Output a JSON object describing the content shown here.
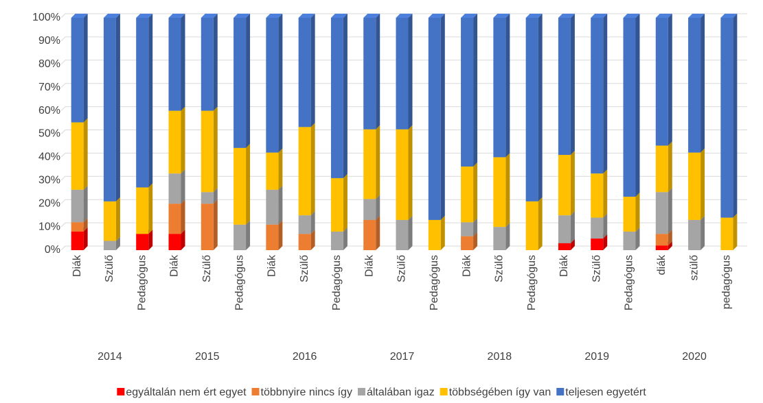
{
  "chart_data": {
    "type": "bar",
    "stacked": true,
    "ylim": [
      0,
      100
    ],
    "yticks": [
      {
        "value": 0,
        "label": "0%"
      },
      {
        "value": 10,
        "label": "10%"
      },
      {
        "value": 20,
        "label": "20%"
      },
      {
        "value": 30,
        "label": "30%"
      },
      {
        "value": 40,
        "label": "40%"
      },
      {
        "value": 50,
        "label": "50%"
      },
      {
        "value": 60,
        "label": "60%"
      },
      {
        "value": 70,
        "label": "70%"
      },
      {
        "value": 80,
        "label": "80%"
      },
      {
        "value": 90,
        "label": "90%"
      },
      {
        "value": 100,
        "label": "100%"
      }
    ],
    "grid": true,
    "legend": "bottom",
    "categories": [
      "Diák",
      "Szülő",
      "Pedagógus",
      "Diák",
      "Szülő",
      "Pedagógus",
      "Diák",
      "Szülő",
      "Pedagógus",
      "Diák",
      "Szülő",
      "Pedagógus",
      "Diák",
      "Szülő",
      "Pedagógus",
      "Diák",
      "Szülő",
      "Pedagógus",
      "diák",
      "szülő",
      "pedagógus"
    ],
    "groups": [
      "2014",
      "2015",
      "2016",
      "2017",
      "2018",
      "2019",
      "2020"
    ],
    "series": [
      {
        "name": "egyáltalán nem ért egyet",
        "color": "#ff0000",
        "values": [
          8,
          0,
          7,
          7,
          0,
          0,
          0,
          0,
          0,
          0,
          0,
          0,
          0,
          0,
          0,
          3,
          5,
          0,
          2,
          0,
          0
        ]
      },
      {
        "name": "többnyire nincs így",
        "color": "#ed7d31",
        "values": [
          4,
          0,
          0,
          13,
          20,
          0,
          11,
          7,
          0,
          13,
          0,
          0,
          6,
          0,
          0,
          0,
          0,
          0,
          5,
          0,
          0
        ]
      },
      {
        "name": "általában igaz",
        "color": "#a5a5a5",
        "values": [
          14,
          4,
          0,
          13,
          5,
          11,
          15,
          8,
          8,
          9,
          13,
          0,
          6,
          10,
          0,
          12,
          9,
          8,
          18,
          13,
          0
        ]
      },
      {
        "name": "többségében így van",
        "color": "#ffc000",
        "values": [
          29,
          17,
          20,
          27,
          35,
          33,
          16,
          38,
          23,
          30,
          39,
          13,
          24,
          30,
          21,
          26,
          19,
          15,
          20,
          29,
          14
        ]
      },
      {
        "name": "teljesen egyetért",
        "color": "#4472c4",
        "values": [
          45,
          79,
          73,
          40,
          40,
          56,
          58,
          47,
          69,
          48,
          48,
          87,
          64,
          60,
          79,
          59,
          67,
          77,
          55,
          58,
          86
        ]
      }
    ]
  }
}
